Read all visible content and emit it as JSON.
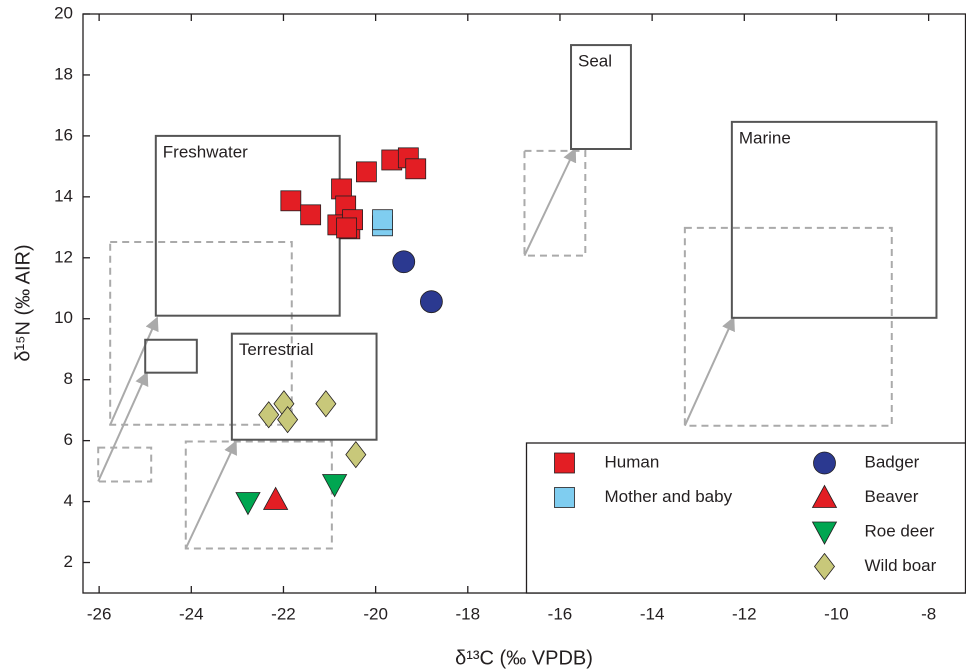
{
  "chart_data": {
    "type": "scatter",
    "x_label": "δ¹³C (‰ VPDB)",
    "y_label": "δ¹⁵N (‰ AIR)",
    "xlim": [
      -26.35,
      -7.2
    ],
    "ylim": [
      1,
      20
    ],
    "xticks": [
      -26,
      -24,
      -22,
      -20,
      -18,
      -16,
      -14,
      -12,
      -10,
      -8
    ],
    "yticks": [
      2,
      4,
      6,
      8,
      10,
      12,
      14,
      16,
      18,
      20
    ],
    "legend": "lower right",
    "series": [
      {
        "name": "Human",
        "color": "#e31e24",
        "marker": "square",
        "x": [
          -21.84,
          -21.41,
          -20.74,
          -20.65,
          -20.82,
          -20.56,
          -20.5,
          -20.63,
          -20.2,
          -19.65,
          -19.29,
          -19.13
        ],
        "values": [
          13.87,
          13.41,
          14.26,
          13.7,
          13.08,
          12.95,
          13.25,
          12.98,
          14.82,
          15.21,
          15.28,
          14.92
        ]
      },
      {
        "name": "Mother and baby",
        "color": "#7fcdf0",
        "marker": "square",
        "x": [
          -19.85,
          -19.85
        ],
        "values": [
          13.05,
          13.25
        ]
      },
      {
        "name": "Badger",
        "color": "#2b3990",
        "marker": "circle",
        "x": [
          -19.39,
          -18.79
        ],
        "values": [
          11.87,
          10.56
        ]
      },
      {
        "name": "Beaver",
        "color": "#e31e24",
        "marker": "triangle-up",
        "x": [
          -22.17
        ],
        "values": [
          4.07
        ]
      },
      {
        "name": "Roe deer",
        "color": "#00a651",
        "marker": "triangle-down",
        "x": [
          -22.77,
          -20.89
        ],
        "values": [
          3.97,
          4.56
        ]
      },
      {
        "name": "Wild boar",
        "color": "#c8c87a",
        "marker": "diamond",
        "x": [
          -22.32,
          -21.99,
          -21.91,
          -21.08,
          -20.43
        ],
        "values": [
          6.85,
          7.21,
          6.69,
          7.21,
          5.54
        ]
      }
    ],
    "regions": [
      {
        "x": [
          -25.76,
          -21.82
        ],
        "y": [
          6.52,
          12.52
        ],
        "dashed": true
      },
      {
        "x": [
          -26.02,
          -24.87
        ],
        "y": [
          4.66,
          5.77
        ],
        "dashed": true
      },
      {
        "x": [
          -24.12,
          -20.95
        ],
        "y": [
          2.46,
          5.97
        ],
        "dashed": true
      },
      {
        "x": [
          -16.77,
          -15.45
        ],
        "y": [
          12.07,
          15.51
        ],
        "dashed": true
      },
      {
        "x": [
          -13.29,
          -8.8
        ],
        "y": [
          6.49,
          12.98
        ],
        "dashed": true
      },
      {
        "label": "Freshwater",
        "x": [
          -24.77,
          -20.78
        ],
        "y": [
          10.1,
          16.0
        ],
        "dashed": false
      },
      {
        "label": "Terrestrial",
        "x": [
          -23.12,
          -19.98
        ],
        "y": [
          6.03,
          9.51
        ],
        "dashed": false
      },
      {
        "x": [
          -25.0,
          -23.88
        ],
        "y": [
          8.23,
          9.31
        ],
        "dashed": false
      },
      {
        "label": "Seal",
        "x": [
          -15.76,
          -14.46
        ],
        "y": [
          15.57,
          18.98
        ],
        "dashed": false
      },
      {
        "label": "Marine",
        "x": [
          -12.27,
          -7.83
        ],
        "y": [
          10.03,
          16.46
        ],
        "dashed": false
      }
    ],
    "arrows": [
      {
        "x": [
          -25.76,
          -24.74
        ],
        "y": [
          6.52,
          10.03
        ]
      },
      {
        "x": [
          -26.02,
          -24.96
        ],
        "y": [
          4.66,
          8.23
        ]
      },
      {
        "x": [
          -24.12,
          -23.03
        ],
        "y": [
          2.46,
          5.97
        ]
      },
      {
        "x": [
          -16.77,
          -15.67
        ],
        "y": [
          12.07,
          15.57
        ]
      },
      {
        "x": [
          -13.29,
          -12.23
        ],
        "y": [
          6.49,
          10.03
        ]
      }
    ]
  }
}
